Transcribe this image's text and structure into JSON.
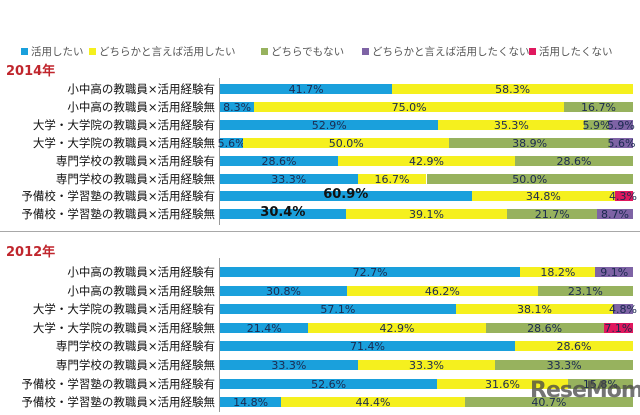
{
  "chart_data": {
    "type": "bar",
    "orientation": "horizontal-stacked-100",
    "legend": {
      "placement": "top",
      "entries": [
        {
          "name": "活用したい",
          "color": "#1aa0dc"
        },
        {
          "name": "どちらかと言えば活用したい",
          "color": "#f5f01e"
        },
        {
          "name": "どちらでもない",
          "color": "#97b25e"
        },
        {
          "name": "どちらかと言えば活用したくない",
          "color": "#7e63a5"
        },
        {
          "name": "活用したくない",
          "color": "#e0185e"
        }
      ]
    },
    "xlim": [
      0,
      100
    ],
    "grid": false,
    "panels": [
      {
        "title": "2014年",
        "categories": [
          "小中高の教職員×活用経験有",
          "小中高の教職員×活用経験無",
          "大学・大学院の教職員×活用経験有",
          "大学・大学院の教職員×活用経験無",
          "専門学校の教職員×活用経験有",
          "専門学校の教職員×活用経験無",
          "予備校・学習塾の教職員×活用経験有",
          "予備校・学習塾の教職員×活用経験無"
        ],
        "series": [
          {
            "name": "活用したい",
            "values": [
              41.7,
              8.3,
              52.9,
              5.6,
              28.6,
              33.3,
              60.9,
              30.4
            ]
          },
          {
            "name": "どちらかと言えば活用したい",
            "values": [
              58.3,
              75.0,
              35.3,
              50.0,
              42.9,
              16.7,
              34.8,
              39.1
            ]
          },
          {
            "name": "どちらでもない",
            "values": [
              0,
              16.7,
              5.9,
              38.9,
              28.6,
              50.0,
              0,
              21.7
            ]
          },
          {
            "name": "どちらかと言えば活用したくない",
            "values": [
              0,
              0,
              5.9,
              5.6,
              0,
              0,
              0,
              8.7
            ]
          },
          {
            "name": "活用したくない",
            "values": [
              0,
              0,
              0,
              0,
              0,
              0,
              4.3,
              0
            ]
          }
        ],
        "labels": [
          [
            "41.7%",
            "58.3%",
            "",
            "",
            ""
          ],
          [
            "8.3%",
            "75.0%",
            "16.7%",
            "",
            ""
          ],
          [
            "52.9%",
            "35.3%",
            "5.9%",
            "5.9%",
            ""
          ],
          [
            "5.6%",
            "50.0%",
            "38.9%",
            "5.6%",
            ""
          ],
          [
            "28.6%",
            "42.9%",
            "28.6%",
            "",
            ""
          ],
          [
            "33.3%",
            "16.7%",
            "50.0%",
            "",
            ""
          ],
          [
            "60.9%",
            "34.8%",
            "",
            "",
            "4.3%"
          ],
          [
            "30.4%",
            "39.1%",
            "21.7%",
            "8.7%",
            ""
          ]
        ],
        "emphasized": [
          [
            6,
            0
          ],
          [
            7,
            0
          ]
        ]
      },
      {
        "title": "2012年",
        "categories": [
          "小中高の教職員×活用経験有",
          "小中高の教職員×活用経験無",
          "大学・大学院の教職員×活用経験有",
          "大学・大学院の教職員×活用経験無",
          "専門学校の教職員×活用経験有",
          "専門学校の教職員×活用経験無",
          "予備校・学習塾の教職員×活用経験有",
          "予備校・学習塾の教職員×活用経験無"
        ],
        "series": [
          {
            "name": "活用したい",
            "values": [
              72.7,
              30.8,
              57.1,
              21.4,
              71.4,
              33.3,
              52.6,
              14.8
            ]
          },
          {
            "name": "どちらかと言えば活用したい",
            "values": [
              18.2,
              46.2,
              38.1,
              42.9,
              28.6,
              33.3,
              31.6,
              44.4
            ]
          },
          {
            "name": "どちらでもない",
            "values": [
              0,
              23.1,
              0,
              28.6,
              0,
              33.3,
              15.8,
              40.7
            ]
          },
          {
            "name": "どちらかと言えば活用したくない",
            "values": [
              9.1,
              0,
              4.8,
              0,
              0,
              0,
              0,
              0
            ]
          },
          {
            "name": "活用したくない",
            "values": [
              0,
              0,
              0,
              7.1,
              0,
              0,
              0,
              0
            ]
          }
        ],
        "labels": [
          [
            "72.7%",
            "18.2%",
            "",
            "9.1%",
            ""
          ],
          [
            "30.8%",
            "46.2%",
            "23.1%",
            "",
            ""
          ],
          [
            "57.1%",
            "38.1%",
            "",
            "4.8%",
            ""
          ],
          [
            "21.4%",
            "42.9%",
            "28.6%",
            "",
            "7.1%"
          ],
          [
            "71.4%",
            "28.6%",
            "",
            "",
            ""
          ],
          [
            "33.3%",
            "33.3%",
            "33.3%",
            "",
            ""
          ],
          [
            "52.6%",
            "31.6%",
            "15.8%",
            "",
            ""
          ],
          [
            "14.8%",
            "44.4%",
            "40.7%",
            "",
            ""
          ]
        ],
        "emphasized": []
      }
    ]
  },
  "watermark": "ReseMom"
}
